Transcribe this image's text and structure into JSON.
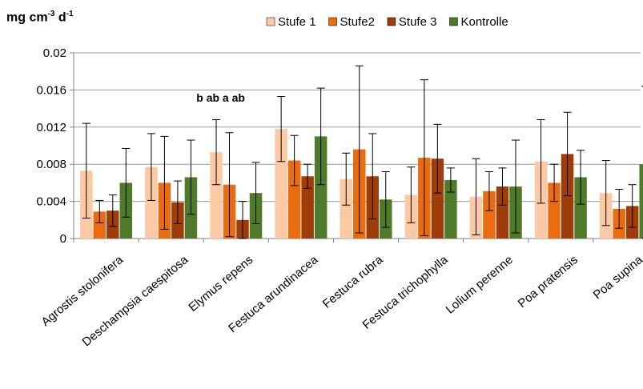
{
  "unit_label": {
    "base": "mg cm",
    "exp1": "-3",
    "mid": " d",
    "exp2": "-1"
  },
  "colors": {
    "Stufe 1": "#fbc9a3",
    "Stufe2": "#ea6c12",
    "Stufe 3": "#9e3c0a",
    "Kontrolle": "#4f7a2a"
  },
  "chart_data": {
    "type": "bar",
    "ylim": [
      0,
      0.02
    ],
    "yticks": [
      "0",
      "0.004",
      "0.008",
      "0.012",
      "0.016",
      "0.02"
    ],
    "ytick_values": [
      0,
      0.004,
      0.008,
      0.012,
      0.016,
      0.02
    ],
    "grid": "horizontal",
    "legend_position": "top",
    "categories": [
      "Agrostis stolonifera",
      "Deschampsia caespitosa",
      "Elymus repens",
      "Festuca arundinacea",
      "Festuca rubra",
      "Festuca trichophylla",
      "Lolium perenne",
      "Poa pratensis",
      "Poa supina"
    ],
    "series": [
      {
        "name": "Stufe 1",
        "values": [
          0.0073,
          0.0077,
          0.0093,
          0.0118,
          0.0064,
          0.0047,
          0.0045,
          0.0083,
          0.0049
        ],
        "errors": [
          0.0051,
          0.0036,
          0.0035,
          0.0035,
          0.0028,
          0.003,
          0.0041,
          0.0045,
          0.0035
        ]
      },
      {
        "name": "Stufe2",
        "values": [
          0.0029,
          0.006,
          0.0058,
          0.0084,
          0.0096,
          0.0087,
          0.0051,
          0.006,
          0.0032
        ],
        "errors": [
          0.0012,
          0.005,
          0.0056,
          0.0027,
          0.009,
          0.0084,
          0.0021,
          0.002,
          0.0021
        ]
      },
      {
        "name": "Stufe 3",
        "values": [
          0.003,
          0.0039,
          0.002,
          0.0067,
          0.0067,
          0.0086,
          0.0056,
          0.0091,
          0.0035
        ],
        "errors": [
          0.0017,
          0.0023,
          0.002,
          0.0013,
          0.0046,
          0.0037,
          0.002,
          0.0045,
          0.0023
        ]
      },
      {
        "name": "Kontrolle",
        "values": [
          0.006,
          0.0066,
          0.0049,
          0.011,
          0.0042,
          0.0063,
          0.0056,
          0.0066,
          0.008
        ],
        "errors": [
          0.0037,
          0.004,
          0.0033,
          0.0052,
          0.003,
          0.0013,
          0.005,
          0.0029,
          0.0084
        ]
      }
    ],
    "annotations": [
      {
        "text": "b ab a ab",
        "category": "Elymus repens"
      }
    ]
  }
}
